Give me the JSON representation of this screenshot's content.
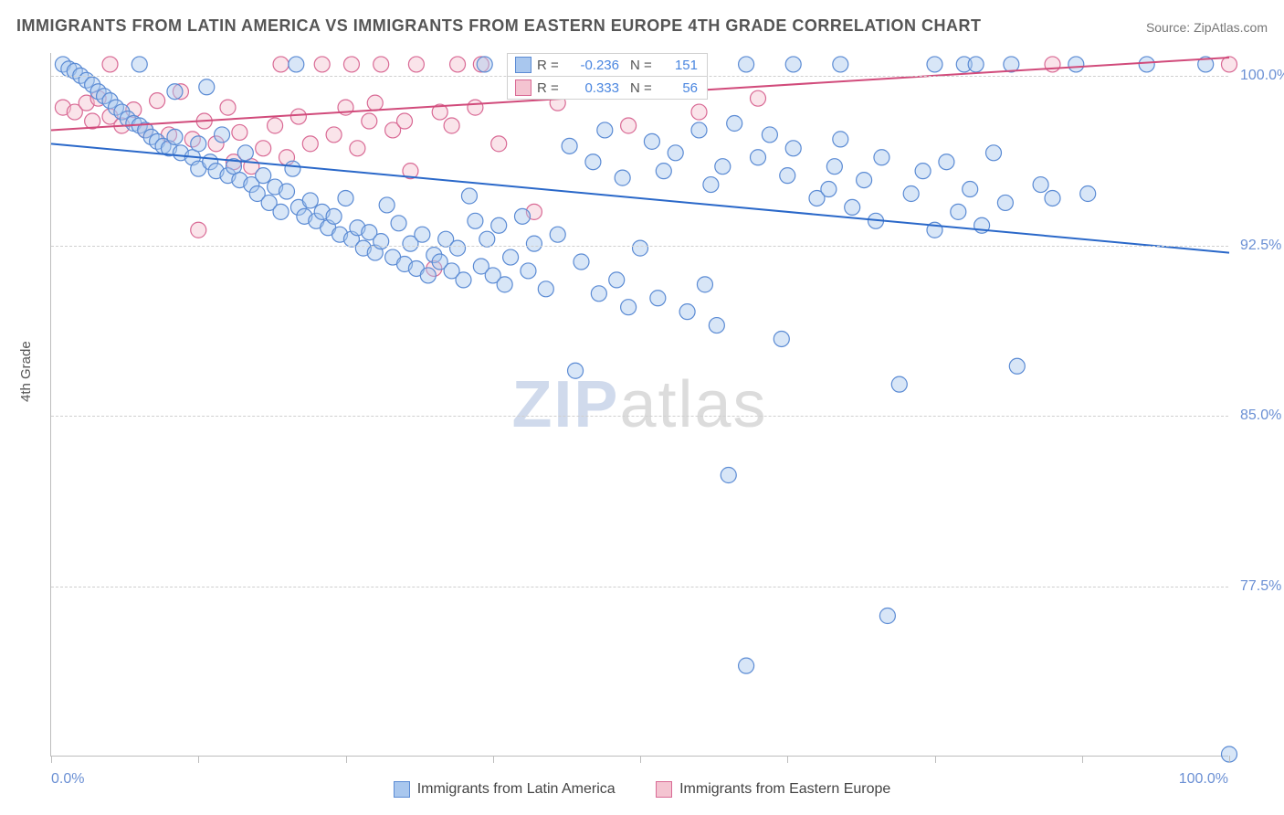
{
  "title": "IMMIGRANTS FROM LATIN AMERICA VS IMMIGRANTS FROM EASTERN EUROPE 4TH GRADE CORRELATION CHART",
  "source": "Source: ZipAtlas.com",
  "watermark": {
    "left": "ZIP",
    "right": "atlas"
  },
  "chart": {
    "type": "scatter",
    "y_axis_title": "4th Grade",
    "xlim": [
      0,
      100
    ],
    "ylim": [
      70,
      101
    ],
    "x_ticks": [
      0,
      12.5,
      25,
      37.5,
      50,
      62.5,
      75,
      87.5,
      100
    ],
    "x_tick_labels": {
      "0": "0.0%",
      "100": "100.0%"
    },
    "y_gridlines": [
      77.5,
      85.0,
      92.5,
      100.0
    ],
    "y_tick_labels": [
      "77.5%",
      "85.0%",
      "92.5%",
      "100.0%"
    ],
    "grid_color": "#cfcfcf",
    "axis_color": "#bdbdbd",
    "background_color": "#ffffff",
    "series": [
      {
        "name": "Immigrants from Latin America",
        "color_fill": "#a9c7ee",
        "color_stroke": "#5b8bd4",
        "marker_radius": 8.5,
        "R": "-0.236",
        "N": "151",
        "trend": {
          "x1": 0,
          "y1": 97.0,
          "x2": 100,
          "y2": 92.2,
          "color": "#2a68c9",
          "width": 2
        },
        "points": [
          [
            1,
            100.5
          ],
          [
            1.5,
            100.3
          ],
          [
            2,
            100.2
          ],
          [
            2.5,
            100.0
          ],
          [
            3,
            99.8
          ],
          [
            3.5,
            99.6
          ],
          [
            4,
            99.3
          ],
          [
            4.5,
            99.1
          ],
          [
            5,
            98.9
          ],
          [
            5.5,
            98.6
          ],
          [
            6,
            98.4
          ],
          [
            6.5,
            98.1
          ],
          [
            7,
            97.9
          ],
          [
            7.5,
            97.8
          ],
          [
            7.5,
            100.5
          ],
          [
            8,
            97.6
          ],
          [
            8.5,
            97.3
          ],
          [
            9,
            97.1
          ],
          [
            9.5,
            96.9
          ],
          [
            10,
            96.8
          ],
          [
            10.5,
            97.3
          ],
          [
            11,
            96.6
          ],
          [
            10.5,
            99.3
          ],
          [
            12,
            96.4
          ],
          [
            12.5,
            97.0
          ],
          [
            12.5,
            95.9
          ],
          [
            13.2,
            99.5
          ],
          [
            13.5,
            96.2
          ],
          [
            14,
            95.8
          ],
          [
            14.5,
            97.4
          ],
          [
            15,
            95.6
          ],
          [
            15.5,
            96.0
          ],
          [
            16,
            95.4
          ],
          [
            16.5,
            96.6
          ],
          [
            17,
            95.2
          ],
          [
            17.5,
            94.8
          ],
          [
            18,
            95.6
          ],
          [
            18.5,
            94.4
          ],
          [
            19,
            95.1
          ],
          [
            19.5,
            94.0
          ],
          [
            20,
            94.9
          ],
          [
            20.5,
            95.9
          ],
          [
            20.8,
            100.5
          ],
          [
            21,
            94.2
          ],
          [
            21.5,
            93.8
          ],
          [
            22,
            94.5
          ],
          [
            22.5,
            93.6
          ],
          [
            23,
            94.0
          ],
          [
            23.5,
            93.3
          ],
          [
            24,
            93.8
          ],
          [
            24.5,
            93.0
          ],
          [
            25,
            94.6
          ],
          [
            25.5,
            92.8
          ],
          [
            26,
            93.3
          ],
          [
            26.5,
            92.4
          ],
          [
            27,
            93.1
          ],
          [
            27.5,
            92.2
          ],
          [
            28,
            92.7
          ],
          [
            28.5,
            94.3
          ],
          [
            29,
            92.0
          ],
          [
            29.5,
            93.5
          ],
          [
            30,
            91.7
          ],
          [
            30.5,
            92.6
          ],
          [
            31,
            91.5
          ],
          [
            31.5,
            93.0
          ],
          [
            32,
            91.2
          ],
          [
            32.5,
            92.1
          ],
          [
            33,
            91.8
          ],
          [
            33.5,
            92.8
          ],
          [
            34,
            91.4
          ],
          [
            34.5,
            92.4
          ],
          [
            35,
            91.0
          ],
          [
            35.5,
            94.7
          ],
          [
            36,
            93.6
          ],
          [
            36.5,
            91.6
          ],
          [
            36.8,
            100.5
          ],
          [
            37,
            92.8
          ],
          [
            37.5,
            91.2
          ],
          [
            38,
            93.4
          ],
          [
            38.5,
            90.8
          ],
          [
            39,
            92.0
          ],
          [
            40,
            93.8
          ],
          [
            40.5,
            91.4
          ],
          [
            41,
            92.6
          ],
          [
            42,
            90.6
          ],
          [
            43,
            93.0
          ],
          [
            44,
            96.9
          ],
          [
            44.5,
            87.0
          ],
          [
            45,
            91.8
          ],
          [
            46,
            96.2
          ],
          [
            46.5,
            90.4
          ],
          [
            47,
            97.6
          ],
          [
            48,
            91.0
          ],
          [
            48.5,
            95.5
          ],
          [
            49,
            89.8
          ],
          [
            50,
            92.4
          ],
          [
            51,
            97.1
          ],
          [
            51.5,
            90.2
          ],
          [
            52,
            95.8
          ],
          [
            53,
            96.6
          ],
          [
            54,
            89.6
          ],
          [
            55,
            97.6
          ],
          [
            55.5,
            90.8
          ],
          [
            56,
            95.2
          ],
          [
            56.5,
            89.0
          ],
          [
            57,
            96.0
          ],
          [
            57.5,
            82.4
          ],
          [
            58,
            97.9
          ],
          [
            59,
            74.0
          ],
          [
            59,
            100.5
          ],
          [
            60,
            96.4
          ],
          [
            61,
            97.4
          ],
          [
            62,
            88.4
          ],
          [
            62.5,
            95.6
          ],
          [
            63,
            96.8
          ],
          [
            63,
            100.5
          ],
          [
            65,
            94.6
          ],
          [
            66,
            95.0
          ],
          [
            66.5,
            96.0
          ],
          [
            67,
            97.2
          ],
          [
            67,
            100.5
          ],
          [
            68,
            94.2
          ],
          [
            69,
            95.4
          ],
          [
            70,
            93.6
          ],
          [
            70.5,
            96.4
          ],
          [
            71,
            76.2
          ],
          [
            72,
            86.4
          ],
          [
            73,
            94.8
          ],
          [
            74,
            95.8
          ],
          [
            75,
            93.2
          ],
          [
            75,
            100.5
          ],
          [
            76,
            96.2
          ],
          [
            77,
            94.0
          ],
          [
            77.5,
            100.5
          ],
          [
            78,
            95.0
          ],
          [
            78.5,
            100.5
          ],
          [
            79,
            93.4
          ],
          [
            80,
            96.6
          ],
          [
            81,
            94.4
          ],
          [
            81.5,
            100.5
          ],
          [
            82,
            87.2
          ],
          [
            84,
            95.2
          ],
          [
            85,
            94.6
          ],
          [
            87,
            100.5
          ],
          [
            88,
            94.8
          ],
          [
            93,
            100.5
          ],
          [
            98,
            100.5
          ],
          [
            100,
            70.1
          ]
        ]
      },
      {
        "name": "Immigrants from Eastern Europe",
        "color_fill": "#f4c4d1",
        "color_stroke": "#d96a95",
        "marker_radius": 8.5,
        "R": "0.333",
        "N": "56",
        "trend": {
          "x1": 0,
          "y1": 97.6,
          "x2": 100,
          "y2": 100.8,
          "color": "#d14b7b",
          "width": 2
        },
        "points": [
          [
            1,
            98.6
          ],
          [
            2,
            98.4
          ],
          [
            3,
            98.8
          ],
          [
            3.5,
            98.0
          ],
          [
            4,
            99.0
          ],
          [
            5,
            98.2
          ],
          [
            5,
            100.5
          ],
          [
            6,
            97.8
          ],
          [
            7,
            98.5
          ],
          [
            8,
            97.6
          ],
          [
            9,
            98.9
          ],
          [
            10,
            97.4
          ],
          [
            11,
            99.3
          ],
          [
            12,
            97.2
          ],
          [
            12.5,
            93.2
          ],
          [
            13,
            98.0
          ],
          [
            14,
            97.0
          ],
          [
            15,
            98.6
          ],
          [
            15.5,
            96.2
          ],
          [
            16,
            97.5
          ],
          [
            17,
            96.0
          ],
          [
            18,
            96.8
          ],
          [
            19,
            97.8
          ],
          [
            19.5,
            100.5
          ],
          [
            20,
            96.4
          ],
          [
            21,
            98.2
          ],
          [
            22,
            97.0
          ],
          [
            23,
            100.5
          ],
          [
            24,
            97.4
          ],
          [
            25,
            98.6
          ],
          [
            25.5,
            100.5
          ],
          [
            26,
            96.8
          ],
          [
            27,
            98.0
          ],
          [
            27.5,
            98.8
          ],
          [
            28,
            100.5
          ],
          [
            29,
            97.6
          ],
          [
            30,
            98.0
          ],
          [
            30.5,
            95.8
          ],
          [
            31,
            100.5
          ],
          [
            32.5,
            91.5
          ],
          [
            33,
            98.4
          ],
          [
            34,
            97.8
          ],
          [
            34.5,
            100.5
          ],
          [
            36,
            98.6
          ],
          [
            36.5,
            100.5
          ],
          [
            38,
            97.0
          ],
          [
            41,
            94.0
          ],
          [
            41.5,
            100.5
          ],
          [
            43,
            98.8
          ],
          [
            44,
            100.5
          ],
          [
            49,
            97.8
          ],
          [
            55,
            98.4
          ],
          [
            60,
            99.0
          ],
          [
            85,
            100.5
          ],
          [
            100,
            100.5
          ]
        ]
      }
    ]
  },
  "legend_bottom": [
    {
      "label": "Immigrants from Latin America",
      "fill": "#a9c7ee",
      "stroke": "#5b8bd4"
    },
    {
      "label": "Immigrants from Eastern Europe",
      "fill": "#f4c4d1",
      "stroke": "#d96a95"
    }
  ]
}
